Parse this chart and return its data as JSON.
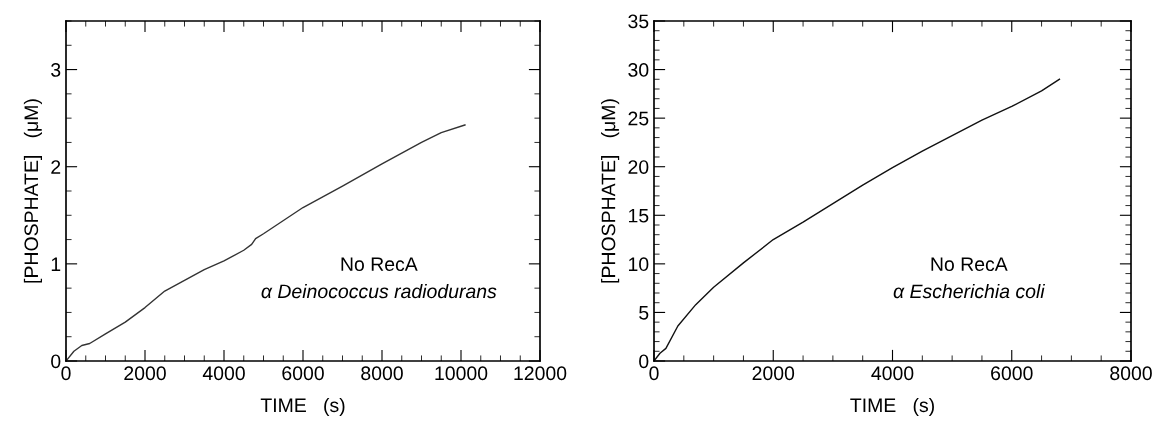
{
  "chart_data": [
    {
      "type": "line",
      "xlabel": "TIME   (s)",
      "ylabel": "[PHOSPHATE]   (μM)",
      "xlim": [
        0,
        12000
      ],
      "ylim": [
        0,
        3.5
      ],
      "xticks": [
        0,
        2000,
        4000,
        6000,
        8000,
        10000,
        12000
      ],
      "yticks": [
        0,
        1,
        2,
        3
      ],
      "grid": false,
      "legend": false,
      "marker": "none",
      "line_style": "solid",
      "annotations": [
        "No RecA",
        "α Deinococcus radiodurans"
      ],
      "series": [
        {
          "color": "#333333",
          "x": [
            0,
            200,
            400,
            600,
            1000,
            1500,
            2000,
            2500,
            3000,
            3500,
            4000,
            4500,
            4700,
            4800,
            5000,
            6000,
            7000,
            8000,
            9000,
            9500,
            10100
          ],
          "values": [
            0,
            0.1,
            0.16,
            0.18,
            0.28,
            0.4,
            0.55,
            0.72,
            0.83,
            0.94,
            1.03,
            1.14,
            1.2,
            1.26,
            1.31,
            1.58,
            1.8,
            2.03,
            2.25,
            2.35,
            2.43
          ]
        }
      ]
    },
    {
      "type": "line",
      "xlabel": "TIME   (s)",
      "ylabel": "[PHOSPHATE]   (μM)",
      "xlim": [
        0,
        8000
      ],
      "ylim": [
        0,
        35
      ],
      "xticks": [
        0,
        2000,
        4000,
        6000,
        8000
      ],
      "yticks": [
        0,
        5,
        10,
        15,
        20,
        25,
        30,
        35
      ],
      "grid": false,
      "legend": false,
      "marker": "none",
      "line_style": "solid",
      "annotations": [
        "No RecA",
        "α Escherichia coli"
      ],
      "series": [
        {
          "color": "#111111",
          "x": [
            0,
            100,
            200,
            400,
            700,
            1000,
            1500,
            2000,
            2500,
            3000,
            3500,
            4000,
            4500,
            5000,
            5500,
            6000,
            6500,
            6800
          ],
          "values": [
            0,
            0.8,
            1.3,
            3.6,
            5.8,
            7.6,
            10.1,
            12.5,
            14.3,
            16.2,
            18.1,
            19.9,
            21.6,
            23.2,
            24.8,
            26.2,
            27.8,
            29
          ]
        }
      ]
    }
  ]
}
